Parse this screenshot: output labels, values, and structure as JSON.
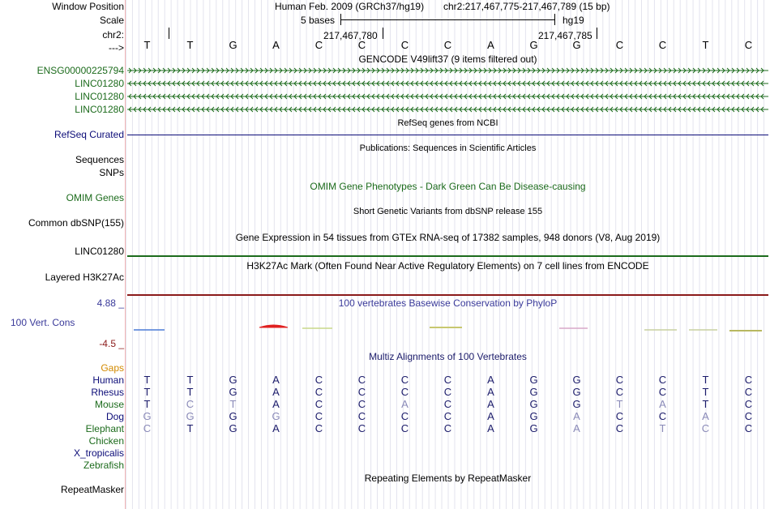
{
  "header": {
    "window_label": "Window Position",
    "scale_label": "Scale",
    "chr_label": "chr2:",
    "arrow_label": "--->",
    "assembly": "Human Feb. 2009 (GRCh37/hg19)",
    "position": "chr2:217,467,775-217,467,789 (15 bp)",
    "scale_text": "5 bases",
    "scale_db": "hg19",
    "coord1": "217,467,780",
    "coord2": "217,467,785"
  },
  "bases": [
    "T",
    "T",
    "G",
    "A",
    "C",
    "C",
    "C",
    "C",
    "A",
    "G",
    "G",
    "C",
    "C",
    "T",
    "C"
  ],
  "tracks": {
    "gencode_title": "GENCODE V49lift37 (9 items filtered out)",
    "gencode_rows": [
      "ENSG00000225794",
      "LINC01280",
      "LINC01280",
      "LINC01280"
    ],
    "refseq_title": "RefSeq genes from NCBI",
    "refseq_label": "RefSeq Curated",
    "pubs_title": "Publications: Sequences in Scientific Articles",
    "sequences_label": "Sequences",
    "snps_label": "SNPs",
    "omim_title": "OMIM Gene Phenotypes - Dark Green Can Be Disease-causing",
    "omim_label": "OMIM Genes",
    "dbsnp_title": "Short Genetic Variants from dbSNP release 155",
    "dbsnp_label": "Common dbSNP(155)",
    "gtex_title": "Gene Expression in 54 tissues from GTEx RNA-seq of 17382 samples, 948 donors (V8, Aug 2019)",
    "gtex_label": "LINC01280",
    "h3k27_title": "H3K27Ac Mark (Often Found Near Active Regulatory Elements) on 7 cell lines from ENCODE",
    "h3k27_label": "Layered H3K27Ac",
    "phylop_title": "100 vertebrates Basewise Conservation by PhyloP",
    "phylop_label": "100 Vert. Cons",
    "phylop_max": "4.88 _",
    "phylop_min": "-4.5 _",
    "multiz_title": "Multiz Alignments of 100 Vertebrates",
    "gaps_label": "Gaps",
    "repeat_title": "Repeating Elements by RepeatMasker",
    "repeat_label": "RepeatMasker"
  },
  "alignment": [
    {
      "species": "Human",
      "bases": [
        "T",
        "T",
        "G",
        "A",
        "C",
        "C",
        "C",
        "C",
        "A",
        "G",
        "G",
        "C",
        "C",
        "T",
        "C"
      ],
      "faded": [
        0,
        0,
        0,
        0,
        0,
        0,
        0,
        0,
        0,
        0,
        0,
        0,
        0,
        0,
        0
      ]
    },
    {
      "species": "Rhesus",
      "bases": [
        "T",
        "T",
        "G",
        "A",
        "C",
        "C",
        "C",
        "C",
        "A",
        "G",
        "G",
        "C",
        "C",
        "T",
        "C"
      ],
      "faded": [
        0,
        0,
        0,
        0,
        0,
        0,
        0,
        0,
        0,
        0,
        0,
        0,
        0,
        0,
        0
      ]
    },
    {
      "species": "Mouse",
      "bases": [
        "T",
        "C",
        "T",
        "A",
        "C",
        "C",
        "A",
        "C",
        "A",
        "G",
        "G",
        "T",
        "A",
        "T",
        "C"
      ],
      "faded": [
        0,
        1,
        1,
        0,
        0,
        0,
        1,
        0,
        0,
        0,
        0,
        1,
        1,
        0,
        0
      ]
    },
    {
      "species": "Dog",
      "bases": [
        "G",
        "G",
        "G",
        "G",
        "C",
        "C",
        "C",
        "C",
        "A",
        "G",
        "A",
        "C",
        "C",
        "A",
        "C"
      ],
      "faded": [
        1,
        1,
        0,
        1,
        0,
        0,
        0,
        0,
        0,
        0,
        1,
        0,
        0,
        1,
        0
      ]
    },
    {
      "species": "Elephant",
      "bases": [
        "C",
        "T",
        "G",
        "A",
        "C",
        "C",
        "C",
        "C",
        "A",
        "G",
        "A",
        "C",
        "T",
        "C",
        "C"
      ],
      "faded": [
        1,
        0,
        0,
        0,
        0,
        0,
        0,
        0,
        0,
        0,
        1,
        0,
        1,
        1,
        0
      ]
    },
    {
      "species": "Chicken",
      "bases": [],
      "faded": []
    },
    {
      "species": "X_tropicalis",
      "bases": [],
      "faded": []
    },
    {
      "species": "Zebrafish",
      "bases": [],
      "faded": []
    }
  ],
  "colors": {
    "gencode": "#1c6b1c",
    "refseq": "#0c0c78",
    "multiz": "#1c1c6b",
    "species_human": "#0c0c78",
    "species_green": "#1c6b1c",
    "gaps": "#d38a00",
    "phylop_red": "#8b1a1a",
    "faded_base": "#8a8ab8"
  }
}
